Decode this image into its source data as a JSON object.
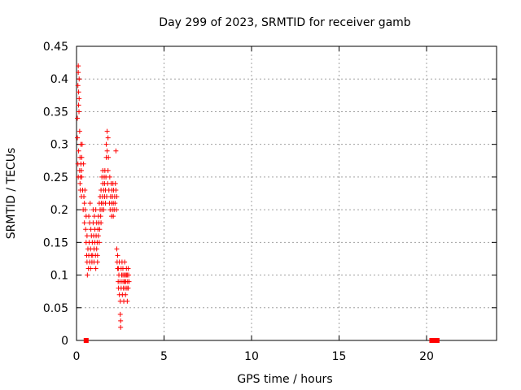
{
  "chart_data": {
    "type": "scatter",
    "title": "Day 299 of 2023, SRMTID for receiver gamb",
    "xlabel": "GPS time / hours",
    "ylabel": "SRMTID / TECUs",
    "xlim": [
      0,
      24
    ],
    "ylim": [
      0,
      0.45
    ],
    "xticks": [
      "0",
      "5",
      "10",
      "15",
      "20"
    ],
    "yticks": [
      "0",
      "0.05",
      "0.1",
      "0.15",
      "0.2",
      "0.25",
      "0.3",
      "0.35",
      "0.4",
      "0.45"
    ],
    "grid": true,
    "marker_color": "#ff0000",
    "series": [
      {
        "marker": "plus",
        "points": [
          [
            0.05,
            0.34
          ],
          [
            0.05,
            0.31
          ],
          [
            0.08,
            0.39
          ],
          [
            0.1,
            0.42
          ],
          [
            0.1,
            0.41
          ],
          [
            0.12,
            0.38
          ],
          [
            0.12,
            0.36
          ],
          [
            0.14,
            0.35
          ],
          [
            0.15,
            0.4
          ],
          [
            0.15,
            0.37
          ],
          [
            0.08,
            0.27
          ],
          [
            0.1,
            0.25
          ],
          [
            0.12,
            0.29
          ],
          [
            0.18,
            0.32
          ],
          [
            0.18,
            0.26
          ],
          [
            0.2,
            0.28
          ],
          [
            0.2,
            0.24
          ],
          [
            0.22,
            0.25
          ],
          [
            0.22,
            0.23
          ],
          [
            0.25,
            0.3
          ],
          [
            0.25,
            0.27
          ],
          [
            0.28,
            0.22
          ],
          [
            0.28,
            0.26
          ],
          [
            0.3,
            0.28
          ],
          [
            0.3,
            0.25
          ],
          [
            0.32,
            0.3
          ],
          [
            0.35,
            0.23
          ],
          [
            0.38,
            0.2
          ],
          [
            0.4,
            0.27
          ],
          [
            0.42,
            0.22
          ],
          [
            0.45,
            0.18
          ],
          [
            0.45,
            0.21
          ],
          [
            0.48,
            0.23
          ],
          [
            0.5,
            0.2
          ],
          [
            0.52,
            0.17
          ],
          [
            0.55,
            0.19
          ],
          [
            0.55,
            0.15
          ],
          [
            0.58,
            0.13
          ],
          [
            0.6,
            0.12
          ],
          [
            0.6,
            0.16
          ],
          [
            0.62,
            0.1
          ],
          [
            0.65,
            0.14
          ],
          [
            0.68,
            0.11
          ],
          [
            0.7,
            0.19
          ],
          [
            0.7,
            0.13
          ],
          [
            0.72,
            0.15
          ],
          [
            0.75,
            0.12
          ],
          [
            0.75,
            0.18
          ],
          [
            0.78,
            0.21
          ],
          [
            0.8,
            0.14
          ],
          [
            0.8,
            0.11
          ],
          [
            0.82,
            0.17
          ],
          [
            0.85,
            0.13
          ],
          [
            0.85,
            0.16
          ],
          [
            0.88,
            0.12
          ],
          [
            0.9,
            0.15
          ],
          [
            0.92,
            0.13
          ],
          [
            0.95,
            0.18
          ],
          [
            0.95,
            0.2
          ],
          [
            0.98,
            0.16
          ],
          [
            1.0,
            0.14
          ],
          [
            1.0,
            0.12
          ],
          [
            1.02,
            0.19
          ],
          [
            1.05,
            0.15
          ],
          [
            1.05,
            0.17
          ],
          [
            1.08,
            0.13
          ],
          [
            1.1,
            0.2
          ],
          [
            1.1,
            0.11
          ],
          [
            1.12,
            0.16
          ],
          [
            1.15,
            0.14
          ],
          [
            1.15,
            0.18
          ],
          [
            1.18,
            0.15
          ],
          [
            1.2,
            0.13
          ],
          [
            1.2,
            0.12
          ],
          [
            1.22,
            0.17
          ],
          [
            1.25,
            0.16
          ],
          [
            1.25,
            0.19
          ],
          [
            1.28,
            0.18
          ],
          [
            1.3,
            0.15
          ],
          [
            1.3,
            0.21
          ],
          [
            1.32,
            0.17
          ],
          [
            1.35,
            0.2
          ],
          [
            1.35,
            0.22
          ],
          [
            1.38,
            0.19
          ],
          [
            1.4,
            0.18
          ],
          [
            1.4,
            0.23
          ],
          [
            1.42,
            0.21
          ],
          [
            1.45,
            0.25
          ],
          [
            1.45,
            0.2
          ],
          [
            1.48,
            0.22
          ],
          [
            1.5,
            0.24
          ],
          [
            1.5,
            0.26
          ],
          [
            1.52,
            0.21
          ],
          [
            1.55,
            0.23
          ],
          [
            1.55,
            0.2
          ],
          [
            1.58,
            0.25
          ],
          [
            1.6,
            0.22
          ],
          [
            1.6,
            0.24
          ],
          [
            1.62,
            0.26
          ],
          [
            1.65,
            0.21
          ],
          [
            1.65,
            0.23
          ],
          [
            1.68,
            0.25
          ],
          [
            1.7,
            0.28
          ],
          [
            1.7,
            0.3
          ],
          [
            1.72,
            0.22
          ],
          [
            1.75,
            0.29
          ],
          [
            1.75,
            0.32
          ],
          [
            1.78,
            0.24
          ],
          [
            1.8,
            0.31
          ],
          [
            1.8,
            0.26
          ],
          [
            1.82,
            0.28
          ],
          [
            1.85,
            0.23
          ],
          [
            1.88,
            0.21
          ],
          [
            1.9,
            0.25
          ],
          [
            1.92,
            0.2
          ],
          [
            1.95,
            0.22
          ],
          [
            1.98,
            0.24
          ],
          [
            2.0,
            0.19
          ],
          [
            2.0,
            0.21
          ],
          [
            2.02,
            0.23
          ],
          [
            2.05,
            0.2
          ],
          [
            2.05,
            0.22
          ],
          [
            2.08,
            0.24
          ],
          [
            2.1,
            0.21
          ],
          [
            2.1,
            0.19
          ],
          [
            2.12,
            0.23
          ],
          [
            2.15,
            0.2
          ],
          [
            2.18,
            0.22
          ],
          [
            2.2,
            0.21
          ],
          [
            2.22,
            0.24
          ],
          [
            2.25,
            0.23
          ],
          [
            2.25,
            0.29
          ],
          [
            2.28,
            0.2
          ],
          [
            2.3,
            0.22
          ],
          [
            2.3,
            0.14
          ],
          [
            2.32,
            0.12
          ],
          [
            2.35,
            0.11
          ],
          [
            2.35,
            0.13
          ],
          [
            2.38,
            0.09
          ],
          [
            2.4,
            0.08
          ],
          [
            2.4,
            0.11
          ],
          [
            2.42,
            0.1
          ],
          [
            2.45,
            0.07
          ],
          [
            2.45,
            0.12
          ],
          [
            2.48,
            0.09
          ],
          [
            2.5,
            0.06
          ],
          [
            2.5,
            0.04
          ],
          [
            2.52,
            0.03
          ],
          [
            2.52,
            0.02
          ],
          [
            2.55,
            0.11
          ],
          [
            2.55,
            0.08
          ],
          [
            2.58,
            0.1
          ],
          [
            2.6,
            0.09
          ],
          [
            2.6,
            0.12
          ],
          [
            2.62,
            0.07
          ],
          [
            2.65,
            0.1
          ],
          [
            2.65,
            0.11
          ],
          [
            2.68,
            0.08
          ],
          [
            2.7,
            0.09
          ],
          [
            2.7,
            0.06
          ],
          [
            2.72,
            0.1
          ],
          [
            2.75,
            0.09
          ],
          [
            2.75,
            0.12
          ],
          [
            2.78,
            0.08
          ],
          [
            2.8,
            0.1
          ],
          [
            2.8,
            0.07
          ],
          [
            2.82,
            0.09
          ],
          [
            2.85,
            0.11
          ],
          [
            2.85,
            0.1
          ],
          [
            2.88,
            0.08
          ],
          [
            2.9,
            0.06
          ],
          [
            2.9,
            0.1
          ],
          [
            2.92,
            0.09
          ],
          [
            2.95,
            0.08
          ],
          [
            2.95,
            0.11
          ],
          [
            2.98,
            0.1
          ],
          [
            3.0,
            0.09
          ]
        ]
      },
      {
        "marker": "square",
        "points": [
          [
            0.55,
            0.0
          ],
          [
            20.3,
            0.0
          ],
          [
            20.45,
            0.0
          ],
          [
            20.6,
            0.0
          ]
        ]
      }
    ]
  }
}
